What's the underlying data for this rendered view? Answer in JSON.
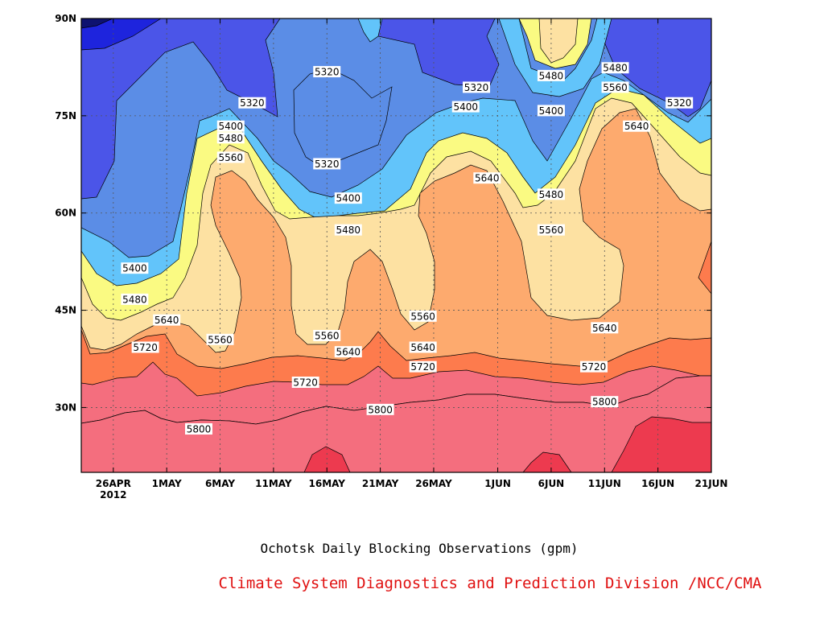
{
  "chart_data": {
    "type": "heatmap",
    "title": "Ochotsk Daily Blocking Observations (gpm)",
    "credit": "Climate System Diagnostics and Prediction Division /NCC/CMA",
    "x_ticks": [
      "26APR",
      "1MAY",
      "6MAY",
      "11MAY",
      "16MAY",
      "21MAY",
      "26MAY",
      "1JUN",
      "6JUN",
      "11JUN",
      "16JUN",
      "21JUN"
    ],
    "x_year": "2012",
    "y_ticks": [
      "30N",
      "45N",
      "60N",
      "75N",
      "90N"
    ],
    "x_range": [
      "2012-04-23",
      "2012-06-21"
    ],
    "y_range_deg": [
      20,
      90
    ],
    "grid": true,
    "contour_levels": [
      5320,
      5400,
      5480,
      5560,
      5640,
      5720,
      5800
    ],
    "band_colors": {
      "below_5320": "#4b55e8",
      "5320_5400": "#5b8de6",
      "5400_5480": "#62c4fa",
      "5480_5560": "#fafa82",
      "5560_5640": "#fde1a2",
      "5640_5720": "#fdaa6e",
      "5720_5800": "#fd7b4d",
      "5800_5880": "#f46e7e",
      "above_5880": "#ed3a4f"
    },
    "extra_dark_colors": [
      "#1e24dd",
      "#0e1270"
    ],
    "contour_labels": [
      {
        "value": "5320",
        "date": "2012-05-16",
        "lat": 81.8
      },
      {
        "value": "5320",
        "date": "2012-05-16",
        "lat": 67.6
      },
      {
        "value": "5320",
        "date": "2012-05-09",
        "lat": 77.0
      },
      {
        "value": "5320",
        "date": "2012-05-30",
        "lat": 79.4
      },
      {
        "value": "5320",
        "date": "2012-06-18",
        "lat": 77.0
      },
      {
        "value": "5400",
        "date": "2012-05-07",
        "lat": 73.4
      },
      {
        "value": "5400",
        "date": "2012-05-29",
        "lat": 76.4
      },
      {
        "value": "5400",
        "date": "2012-05-18",
        "lat": 62.3
      },
      {
        "value": "5400",
        "date": "2012-04-28",
        "lat": 51.5
      },
      {
        "value": "5400",
        "date": "2012-06-06",
        "lat": 75.8
      },
      {
        "value": "5480",
        "date": "2012-05-07",
        "lat": 71.6
      },
      {
        "value": "5480",
        "date": "2012-05-18",
        "lat": 57.4
      },
      {
        "value": "5480",
        "date": "2012-04-28",
        "lat": 46.7
      },
      {
        "value": "5480",
        "date": "2012-06-06",
        "lat": 81.2
      },
      {
        "value": "5480",
        "date": "2012-06-06",
        "lat": 62.9
      },
      {
        "value": "5480",
        "date": "2012-06-12",
        "lat": 82.4
      },
      {
        "value": "5560",
        "date": "2012-05-07",
        "lat": 68.6
      },
      {
        "value": "5560",
        "date": "2012-05-06",
        "lat": 40.5
      },
      {
        "value": "5560",
        "date": "2012-05-16",
        "lat": 41.1
      },
      {
        "value": "5560",
        "date": "2012-05-25",
        "lat": 44.1
      },
      {
        "value": "5560",
        "date": "2012-06-06",
        "lat": 57.4
      },
      {
        "value": "5560",
        "date": "2012-06-12",
        "lat": 79.4
      },
      {
        "value": "5640",
        "date": "2012-05-01",
        "lat": 43.5
      },
      {
        "value": "5640",
        "date": "2012-05-18",
        "lat": 38.6
      },
      {
        "value": "5640",
        "date": "2012-05-25",
        "lat": 39.3
      },
      {
        "value": "5640",
        "date": "2012-05-31",
        "lat": 65.4
      },
      {
        "value": "5640",
        "date": "2012-06-11",
        "lat": 42.3
      },
      {
        "value": "5640",
        "date": "2012-06-14",
        "lat": 73.4
      },
      {
        "value": "5720",
        "date": "2012-04-29",
        "lat": 39.3
      },
      {
        "value": "5720",
        "date": "2012-05-14",
        "lat": 33.9
      },
      {
        "value": "5720",
        "date": "2012-05-25",
        "lat": 36.3
      },
      {
        "value": "5720",
        "date": "2012-06-10",
        "lat": 36.3
      },
      {
        "value": "5800",
        "date": "2012-05-04",
        "lat": 26.7
      },
      {
        "value": "5800",
        "date": "2012-05-21",
        "lat": 29.7
      },
      {
        "value": "5800",
        "date": "2012-06-11",
        "lat": 30.9
      }
    ]
  }
}
